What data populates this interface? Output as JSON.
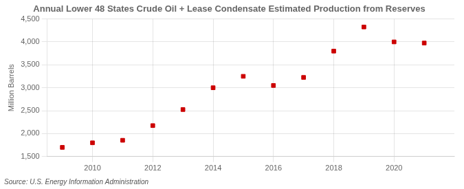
{
  "chart_data": {
    "type": "scatter",
    "title": "Annual Lower 48 States Crude Oil + Lease Condensate Estimated Production from Reserves",
    "ylabel": "Million Barrels",
    "annotations": [
      "Source: U.S. Energy Information Administration"
    ],
    "x": [
      2009,
      2010,
      2011,
      2012,
      2013,
      2014,
      2015,
      2016,
      2017,
      2018,
      2019,
      2020,
      2021
    ],
    "values": [
      1700,
      1800,
      1855,
      2175,
      2525,
      3000,
      3250,
      3050,
      3225,
      3800,
      4325,
      4000,
      3975
    ],
    "color": "#cc0000",
    "marker": "square",
    "xlim": [
      2008.5,
      2022.0
    ],
    "xticks": [
      2010,
      2012,
      2014,
      2016,
      2018,
      2020
    ],
    "ylim": [
      1500,
      4500
    ],
    "yticks": [
      {
        "value": 1500,
        "label": "1,500"
      },
      {
        "value": 2000,
        "label": "2,000"
      },
      {
        "value": 2500,
        "label": "2,500"
      },
      {
        "value": 3000,
        "label": "3,000"
      },
      {
        "value": 3500,
        "label": "3,500"
      },
      {
        "value": 4000,
        "label": "4,000"
      },
      {
        "value": 4500,
        "label": "4,500"
      }
    ],
    "grid": true
  }
}
